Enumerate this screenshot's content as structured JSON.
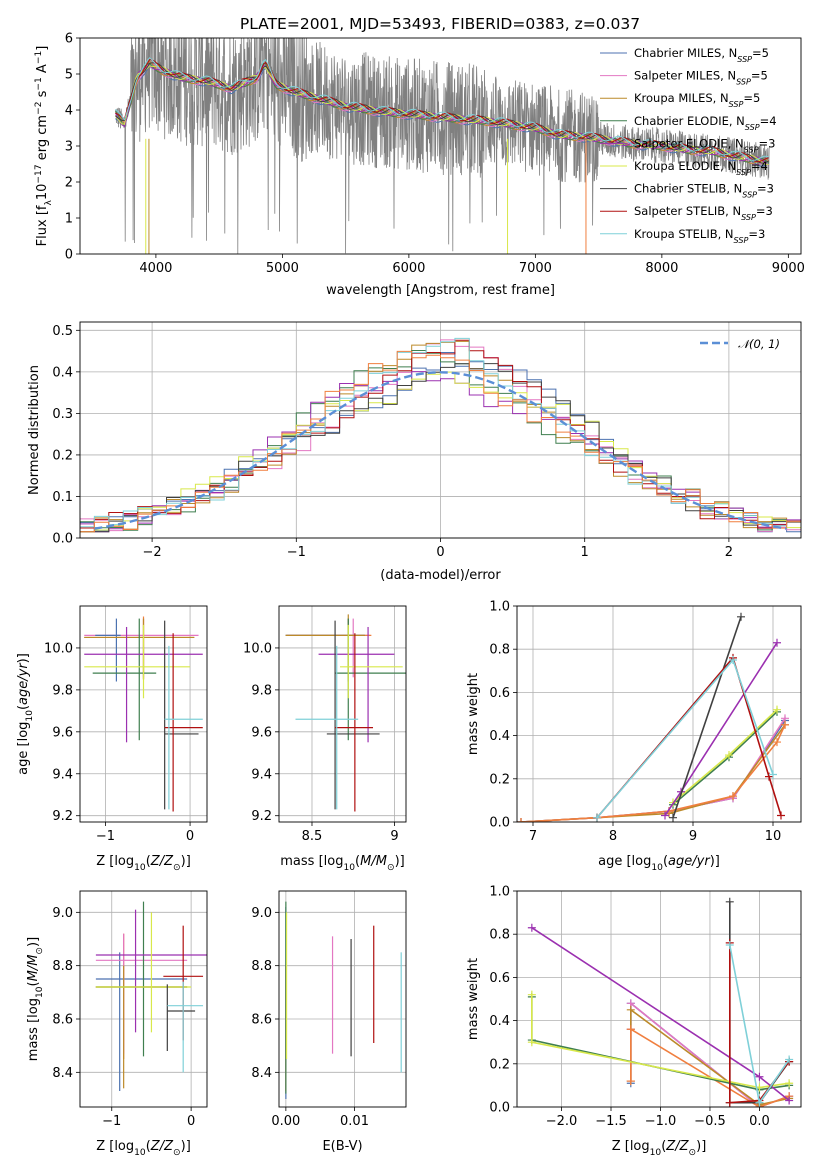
{
  "chart_data": [
    {
      "type": "line",
      "id": "spectrum",
      "title": "PLATE=2001, MJD=53493, FIBERID=0383, z=0.037",
      "xlabel": "wavelength [Angstrom, rest frame]",
      "ylabel": "Flux [fλ10⁻¹⁷ erg cm⁻² s⁻¹ A⁻¹]",
      "xlim": [
        3400,
        9100
      ],
      "ylim": [
        0,
        6
      ],
      "xticks": [
        4000,
        5000,
        6000,
        7000,
        8000,
        9000
      ],
      "yticks": [
        0,
        1,
        2,
        3,
        4,
        5,
        6
      ],
      "grid": false,
      "legend_position": "top-right",
      "data_series": {
        "name": "",
        "color": "#808080"
      },
      "model_curve": {
        "x": [
          3680,
          3750,
          3850,
          3950,
          4050,
          4200,
          4400,
          4600,
          4800,
          4860,
          4950,
          5100,
          5300,
          5500,
          5800,
          6100,
          6400,
          6600,
          6800,
          7000,
          7200,
          7400,
          7600,
          7800,
          8000,
          8200,
          8400,
          8600,
          8850
        ],
        "y": [
          3.9,
          3.6,
          4.9,
          5.3,
          5.1,
          4.9,
          4.8,
          4.6,
          4.9,
          5.3,
          4.7,
          4.5,
          4.3,
          4.1,
          3.95,
          3.85,
          3.75,
          3.7,
          3.6,
          3.5,
          3.3,
          3.25,
          3.15,
          3.05,
          3.0,
          2.9,
          2.85,
          2.7,
          2.55
        ]
      },
      "legend": [
        {
          "label": "Chabrier MILES, N",
          "sub": "SSP",
          "count": "=5",
          "color": "#4c72b0"
        },
        {
          "label": "Salpeter MILES, N",
          "sub": "SSP",
          "count": "=5",
          "color": "#e377c2"
        },
        {
          "label": "Kroupa MILES, N",
          "sub": "SSP",
          "count": "=5",
          "color": "#bc8a2a"
        },
        {
          "label": "Chabrier ELODIE, N",
          "sub": "SSP",
          "count": "=4",
          "color": "#3f7f4f"
        },
        {
          "label": "Salpeter ELODIE, N",
          "sub": "SSP",
          "count": "=3",
          "color": "#9b30b0"
        },
        {
          "label": "Kroupa ELODIE, N",
          "sub": "SSP",
          "count": "=4",
          "color": "#d8e84a"
        },
        {
          "label": "Chabrier STELIB, N",
          "sub": "SSP",
          "count": "=3",
          "color": "#404040"
        },
        {
          "label": "Salpeter STELIB, N",
          "sub": "SSP",
          "count": "=3",
          "color": "#b01010"
        },
        {
          "label": "Kroupa STELIB, N",
          "sub": "SSP",
          "count": "=3",
          "color": "#7fd0d8"
        }
      ]
    },
    {
      "type": "histogram",
      "id": "residuals",
      "xlabel": "(data-model)/error",
      "ylabel": "Normed distribution",
      "xlim": [
        -2.5,
        2.5
      ],
      "ylim": [
        0,
        0.52
      ],
      "xticks": [
        -2,
        -1,
        0,
        1,
        2
      ],
      "yticks": [
        0.0,
        0.1,
        0.2,
        0.3,
        0.4,
        0.5
      ],
      "grid": true,
      "bins": 50,
      "legend_position": "top-right",
      "legend": [
        {
          "label": "𝒩(0, 1)",
          "color": "#5b8fd6",
          "style": "dashed"
        }
      ],
      "hist_colors": [
        "#4c72b0",
        "#e377c2",
        "#bc8a2a",
        "#3f7f4f",
        "#9b30b0",
        "#d8e84a",
        "#404040",
        "#b01010",
        "#7fd0d8",
        "#f07f3f"
      ]
    },
    {
      "type": "scatter",
      "id": "age-vs-Z",
      "xlabel": "Z [log10(Z/Z⊙)]",
      "ylabel": "age  [log10(age/yr)]",
      "xlim": [
        -1.3,
        0.2
      ],
      "ylim": [
        9.17,
        10.2
      ],
      "xticks": [
        -1,
        0
      ],
      "yticks": [
        9.2,
        9.4,
        9.6,
        9.8,
        10.0
      ],
      "grid": true,
      "points": [
        {
          "x": -0.55,
          "y": 10.06,
          "xerr": [
            0.7,
            0.65
          ],
          "yerr": [
            0.2,
            0.08
          ],
          "color": "#e377c2"
        },
        {
          "x": -0.55,
          "y": 10.05,
          "xerr": [
            0.7,
            0.6
          ],
          "yerr": [
            0.2,
            0.1
          ],
          "color": "#f07f3f"
        },
        {
          "x": -0.87,
          "y": 10.06,
          "xerr": [
            0.25,
            0.05
          ],
          "yerr": [
            0.22,
            0.08
          ],
          "color": "#4c72b0"
        },
        {
          "x": -0.55,
          "y": 10.05,
          "xerr": [
            0.7,
            0.6
          ],
          "yerr": [
            0.2,
            0.09
          ],
          "color": "#bc8a2a"
        },
        {
          "x": -0.6,
          "y": 9.88,
          "xerr": [
            0.55,
            0.2
          ],
          "yerr": [
            0.32,
            0.26
          ],
          "color": "#3f7f4f"
        },
        {
          "x": -0.75,
          "y": 9.97,
          "xerr": [
            0.5,
            0.9
          ],
          "yerr": [
            0.42,
            0.13
          ],
          "color": "#9b30b0"
        },
        {
          "x": -0.55,
          "y": 9.91,
          "xerr": [
            0.7,
            0.55
          ],
          "yerr": [
            0.15,
            0.2
          ],
          "color": "#d8e84a"
        },
        {
          "x": -0.3,
          "y": 9.59,
          "xerr": [
            0.0,
            0.4
          ],
          "yerr": [
            0.36,
            0.54
          ],
          "color": "#404040"
        },
        {
          "x": -0.2,
          "y": 9.62,
          "xerr": [
            0.1,
            0.35
          ],
          "yerr": [
            0.4,
            0.45
          ],
          "color": "#b01010"
        },
        {
          "x": -0.25,
          "y": 9.66,
          "xerr": [
            0.05,
            0.4
          ],
          "yerr": [
            0.43,
            0.35
          ],
          "color": "#7fd0d8"
        }
      ]
    },
    {
      "type": "scatter",
      "id": "age-vs-mass",
      "xlabel": "mass [log10(M/M⊙)]",
      "ylabel": "",
      "xlim": [
        8.3,
        9.07
      ],
      "ylim": [
        9.17,
        10.2
      ],
      "xticks": [
        8.5,
        9.0
      ],
      "yticks": [
        9.2,
        9.4,
        9.6,
        9.8,
        10.0
      ],
      "grid": true,
      "points": [
        {
          "x": 8.75,
          "y": 10.06,
          "xerr": [
            0.4,
            0.1
          ],
          "yerr": [
            0.2,
            0.08
          ],
          "color": "#e377c2"
        },
        {
          "x": 8.72,
          "y": 10.06,
          "xerr": [
            0.38,
            0.14
          ],
          "yerr": [
            0.22,
            0.08
          ],
          "color": "#f07f3f"
        },
        {
          "x": 8.72,
          "y": 10.06,
          "xerr": [
            0.38,
            0.1
          ],
          "yerr": [
            0.22,
            0.08
          ],
          "color": "#4c72b0"
        },
        {
          "x": 8.72,
          "y": 10.06,
          "xerr": [
            0.38,
            0.1
          ],
          "yerr": [
            0.2,
            0.1
          ],
          "color": "#bc8a2a"
        },
        {
          "x": 8.72,
          "y": 9.88,
          "xerr": [
            0.08,
            0.35
          ],
          "yerr": [
            0.32,
            0.26
          ],
          "color": "#3f7f4f"
        },
        {
          "x": 8.84,
          "y": 9.97,
          "xerr": [
            0.3,
            0.16
          ],
          "yerr": [
            0.42,
            0.13
          ],
          "color": "#9b30b0"
        },
        {
          "x": 8.72,
          "y": 9.91,
          "xerr": [
            0.05,
            0.33
          ],
          "yerr": [
            0.15,
            0.2
          ],
          "color": "#d8e84a"
        },
        {
          "x": 8.64,
          "y": 9.59,
          "xerr": [
            0.05,
            0.27
          ],
          "yerr": [
            0.36,
            0.54
          ],
          "color": "#404040"
        },
        {
          "x": 8.76,
          "y": 9.62,
          "xerr": [
            0.12,
            0.11
          ],
          "yerr": [
            0.4,
            0.45
          ],
          "color": "#b01010"
        },
        {
          "x": 8.65,
          "y": 9.66,
          "xerr": [
            0.25,
            0.13
          ],
          "yerr": [
            0.43,
            0.35
          ],
          "color": "#7fd0d8"
        }
      ]
    },
    {
      "type": "line",
      "id": "weight-vs-age",
      "xlabel": "age  [log10(age/yr)]",
      "ylabel": "mass weight",
      "xlim": [
        6.8,
        10.35
      ],
      "ylim": [
        0,
        1
      ],
      "xticks": [
        7,
        8,
        9,
        10
      ],
      "yticks": [
        0.0,
        0.2,
        0.4,
        0.6,
        0.8,
        1.0
      ],
      "grid": true,
      "series": [
        {
          "name": "",
          "color": "#4c72b0",
          "x": [
            6.85,
            7.8,
            8.7,
            9.5,
            10.15
          ],
          "y": [
            0.0,
            0.02,
            0.05,
            0.11,
            0.47
          ]
        },
        {
          "name": "",
          "color": "#e377c2",
          "x": [
            6.85,
            7.8,
            8.7,
            9.5,
            10.15
          ],
          "y": [
            0.0,
            0.02,
            0.05,
            0.11,
            0.48
          ]
        },
        {
          "name": "",
          "color": "#bc8a2a",
          "x": [
            6.85,
            7.8,
            8.7,
            9.5,
            10.15
          ],
          "y": [
            0.0,
            0.02,
            0.04,
            0.12,
            0.45
          ]
        },
        {
          "name": "",
          "color": "#f07f3f",
          "x": [
            6.85,
            7.8,
            8.7,
            9.5,
            10.05,
            10.15
          ],
          "y": [
            0.0,
            0.02,
            0.05,
            0.12,
            0.37,
            0.45
          ]
        },
        {
          "name": "",
          "color": "#3f7f4f",
          "x": [
            8.75,
            9.45,
            10.05
          ],
          "y": [
            0.08,
            0.3,
            0.51
          ]
        },
        {
          "name": "",
          "color": "#d8e84a",
          "x": [
            8.75,
            9.45,
            10.05
          ],
          "y": [
            0.09,
            0.31,
            0.52
          ]
        },
        {
          "name": "",
          "color": "#9b30b0",
          "x": [
            8.65,
            8.85,
            10.05
          ],
          "y": [
            0.03,
            0.14,
            0.83
          ]
        },
        {
          "name": "",
          "color": "#404040",
          "x": [
            8.75,
            9.6
          ],
          "y": [
            0.02,
            0.95
          ]
        },
        {
          "name": "",
          "color": "#b01010",
          "x": [
            7.8,
            9.5,
            9.95,
            10.1
          ],
          "y": [
            0.02,
            0.76,
            0.21,
            0.03
          ]
        },
        {
          "name": "",
          "color": "#7fd0d8",
          "x": [
            7.8,
            9.5,
            10.0
          ],
          "y": [
            0.02,
            0.75,
            0.22
          ]
        }
      ]
    },
    {
      "type": "scatter",
      "id": "mass-vs-Z",
      "xlabel": "Z [log10(Z/Z⊙)]",
      "ylabel": "mass [log10(M/M⊙)]",
      "xlim": [
        -1.4,
        0.2
      ],
      "ylim": [
        8.27,
        9.08
      ],
      "xticks": [
        -1,
        0
      ],
      "yticks": [
        8.4,
        8.6,
        8.8,
        9.0
      ],
      "grid": true,
      "points": [
        {
          "x": -0.9,
          "y": 8.75,
          "xerr": [
            0.3,
            0.85
          ],
          "yerr": [
            0.42,
            0.1
          ],
          "color": "#4c72b0"
        },
        {
          "x": -0.85,
          "y": 8.72,
          "xerr": [
            0.35,
            0.8
          ],
          "yerr": [
            0.27,
            0.2
          ],
          "color": "#f07f3f"
        },
        {
          "x": -0.85,
          "y": 8.82,
          "xerr": [
            0.35,
            0.8
          ],
          "yerr": [
            0.35,
            0.1
          ],
          "color": "#e377c2"
        },
        {
          "x": -0.85,
          "y": 8.72,
          "xerr": [
            0.35,
            0.8
          ],
          "yerr": [
            0.38,
            0.08
          ],
          "color": "#bc8a2a"
        },
        {
          "x": -0.6,
          "y": 8.72,
          "xerr": [
            0.6,
            0.55
          ],
          "yerr": [
            0.26,
            0.32
          ],
          "color": "#3f7f4f"
        },
        {
          "x": -0.7,
          "y": 8.84,
          "xerr": [
            0.5,
            0.9
          ],
          "yerr": [
            0.29,
            0.17
          ],
          "color": "#9b30b0"
        },
        {
          "x": -0.5,
          "y": 8.72,
          "xerr": [
            0.7,
            0.5
          ],
          "yerr": [
            0.17,
            0.28
          ],
          "color": "#d8e84a"
        },
        {
          "x": -0.3,
          "y": 8.63,
          "xerr": [
            0.0,
            0.35
          ],
          "yerr": [
            0.15,
            0.1
          ],
          "color": "#404040"
        },
        {
          "x": -0.1,
          "y": 8.76,
          "xerr": [
            0.25,
            0.25
          ],
          "yerr": [
            0.24,
            0.19
          ],
          "color": "#b01010"
        },
        {
          "x": -0.1,
          "y": 8.65,
          "xerr": [
            0.2,
            0.25
          ],
          "yerr": [
            0.25,
            0.09
          ],
          "color": "#7fd0d8"
        }
      ]
    },
    {
      "type": "scatter",
      "id": "mass-vs-EBV",
      "xlabel": "E(B-V)",
      "ylabel": "",
      "xlim": [
        -0.001,
        0.0175
      ],
      "ylim": [
        8.27,
        9.08
      ],
      "xticks": [
        0.0,
        0.01
      ],
      "tick_labels": [
        "0.00",
        "0.01"
      ],
      "yticks": [
        8.4,
        8.6,
        8.8,
        9.0
      ],
      "grid": true,
      "points": [
        {
          "x": 0.0,
          "y": 8.62,
          "yerr": [
            0.32,
            0.4
          ],
          "color": "#4c72b0"
        },
        {
          "x": 0.0,
          "y": 8.6,
          "yerr": [
            0.27,
            0.2
          ],
          "color": "#f07f3f"
        },
        {
          "x": 0.0,
          "y": 8.62,
          "yerr": [
            0.3,
            0.42
          ],
          "color": "#3f7f4f"
        },
        {
          "x": 0.0001,
          "y": 8.65,
          "yerr": [
            0.2,
            0.35
          ],
          "color": "#d8e84a"
        },
        {
          "x": 0.0068,
          "y": 8.69,
          "yerr": [
            0.22,
            0.22
          ],
          "color": "#e377c2"
        },
        {
          "x": 0.0095,
          "y": 8.68,
          "yerr": [
            0.22,
            0.22
          ],
          "color": "#404040"
        },
        {
          "x": 0.0128,
          "y": 8.73,
          "yerr": [
            0.22,
            0.22
          ],
          "color": "#b01010"
        },
        {
          "x": 0.0168,
          "y": 8.62,
          "yerr": [
            0.22,
            0.23
          ],
          "color": "#7fd0d8"
        }
      ]
    },
    {
      "type": "line",
      "id": "weight-vs-Z",
      "xlabel": "Z [log10(Z/Z⊙)]",
      "ylabel": "mass weight",
      "xlim": [
        -2.45,
        0.42
      ],
      "ylim": [
        0,
        1
      ],
      "xticks": [
        -2.0,
        -1.5,
        -1.0,
        -0.5,
        0.0
      ],
      "yticks": [
        0.0,
        0.2,
        0.4,
        0.6,
        0.8,
        1.0
      ],
      "grid": true,
      "series": [
        {
          "name": "",
          "color": "#4c72b0",
          "x": [
            -1.3,
            -1.3,
            -1.3,
            0.0,
            0.3
          ],
          "y": [
            0.11,
            0.36,
            0.48,
            0.0,
            0.05
          ]
        },
        {
          "name": "",
          "color": "#e377c2",
          "x": [
            -1.3,
            -1.3,
            -1.3,
            0.0,
            0.3
          ],
          "y": [
            0.12,
            0.36,
            0.48,
            0.0,
            0.05
          ]
        },
        {
          "name": "",
          "color": "#bc8a2a",
          "x": [
            -1.3,
            -1.3,
            0.0,
            0.3
          ],
          "y": [
            0.12,
            0.45,
            0.01,
            0.04
          ]
        },
        {
          "name": "",
          "color": "#f07f3f",
          "x": [
            -1.3,
            -1.3,
            0.0,
            0.3
          ],
          "y": [
            0.12,
            0.36,
            0.0,
            0.05
          ]
        },
        {
          "name": "",
          "color": "#3f7f4f",
          "x": [
            -2.3,
            -2.3,
            0.0,
            0.3
          ],
          "y": [
            0.51,
            0.31,
            0.08,
            0.1
          ]
        },
        {
          "name": "",
          "color": "#d8e84a",
          "x": [
            -2.3,
            -2.3,
            0.0,
            0.3
          ],
          "y": [
            0.52,
            0.3,
            0.09,
            0.11
          ]
        },
        {
          "name": "",
          "color": "#9b30b0",
          "x": [
            -2.3,
            0.0,
            0.3
          ],
          "y": [
            0.83,
            0.14,
            0.03
          ]
        },
        {
          "name": "",
          "color": "#404040",
          "x": [
            -0.3,
            -0.3,
            0.0,
            0.3
          ],
          "y": [
            0.95,
            0.02,
            0.02,
            0.21
          ]
        },
        {
          "name": "",
          "color": "#b01010",
          "x": [
            -0.3,
            -0.3,
            0.0,
            0.3
          ],
          "y": [
            0.76,
            0.02,
            0.03,
            0.21
          ]
        },
        {
          "name": "",
          "color": "#7fd0d8",
          "x": [
            -0.3,
            0.0,
            0.3
          ],
          "y": [
            0.75,
            0.02,
            0.22
          ]
        }
      ]
    }
  ]
}
